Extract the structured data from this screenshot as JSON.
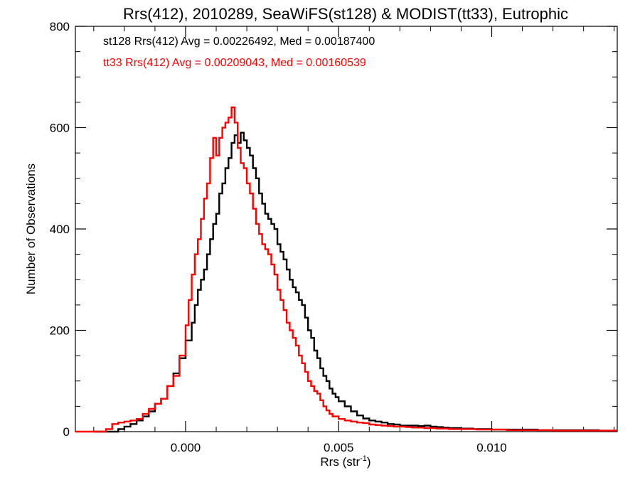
{
  "chart_data": {
    "type": "line",
    "title": "Rrs(412), 2010289, SeaWiFS(st128) & MODIST(tt33), Eutrophic",
    "xlabel": "Rrs (str",
    "xlabel_sup": "-1",
    "xlabel_end": ")",
    "ylabel": "Number of Observations",
    "xlim": [
      -0.0036,
      0.0141
    ],
    "ylim": [
      0,
      800
    ],
    "xticks": [
      0.0,
      0.005,
      0.01
    ],
    "xtick_labels": [
      "0.000",
      "0.005",
      "0.010"
    ],
    "yticks": [
      0,
      200,
      400,
      600,
      800
    ],
    "ytick_labels": [
      "0",
      "200",
      "400",
      "600",
      "800"
    ],
    "grid": false,
    "step": true,
    "annotations": [
      {
        "text": "st128 Rrs(412) Avg = 0.00226492, Med = 0.00187400",
        "color": "#000000"
      },
      {
        "text": "tt33 Rrs(412) Avg = 0.00209043, Med = 0.00160539",
        "color": "#ff0000"
      }
    ],
    "series": [
      {
        "color": "#000000",
        "points": [
          [
            -0.003,
            0
          ],
          [
            -0.0024,
            0
          ],
          [
            -0.0022,
            5
          ],
          [
            -0.002,
            10
          ],
          [
            -0.0018,
            15
          ],
          [
            -0.0016,
            22
          ],
          [
            -0.0014,
            30
          ],
          [
            -0.0012,
            40
          ],
          [
            -0.001,
            55
          ],
          [
            -0.0008,
            65
          ],
          [
            -0.0006,
            90
          ],
          [
            -0.0004,
            115
          ],
          [
            -0.0002,
            145
          ],
          [
            0.0,
            180
          ],
          [
            0.0002,
            215
          ],
          [
            0.0003,
            250
          ],
          [
            0.0004,
            280
          ],
          [
            0.0005,
            300
          ],
          [
            0.0006,
            320
          ],
          [
            0.0007,
            350
          ],
          [
            0.0008,
            380
          ],
          [
            0.0009,
            410
          ],
          [
            0.001,
            430
          ],
          [
            0.0011,
            470
          ],
          [
            0.0012,
            490
          ],
          [
            0.0013,
            520
          ],
          [
            0.0014,
            540
          ],
          [
            0.0015,
            570
          ],
          [
            0.0016,
            585
          ],
          [
            0.0017,
            570
          ],
          [
            0.0018,
            590
          ],
          [
            0.0019,
            575
          ],
          [
            0.002,
            560
          ],
          [
            0.0021,
            545
          ],
          [
            0.0022,
            520
          ],
          [
            0.0023,
            500
          ],
          [
            0.0024,
            470
          ],
          [
            0.0025,
            450
          ],
          [
            0.0026,
            430
          ],
          [
            0.0027,
            420
          ],
          [
            0.0028,
            410
          ],
          [
            0.0029,
            400
          ],
          [
            0.003,
            370
          ],
          [
            0.0031,
            355
          ],
          [
            0.0032,
            340
          ],
          [
            0.0033,
            320
          ],
          [
            0.0034,
            300
          ],
          [
            0.0035,
            285
          ],
          [
            0.0036,
            275
          ],
          [
            0.0037,
            260
          ],
          [
            0.0038,
            250
          ],
          [
            0.0039,
            225
          ],
          [
            0.004,
            200
          ],
          [
            0.0041,
            185
          ],
          [
            0.0042,
            160
          ],
          [
            0.0043,
            145
          ],
          [
            0.0044,
            125
          ],
          [
            0.0045,
            110
          ],
          [
            0.0046,
            100
          ],
          [
            0.0047,
            85
          ],
          [
            0.0048,
            75
          ],
          [
            0.0049,
            68
          ],
          [
            0.005,
            60
          ],
          [
            0.0052,
            50
          ],
          [
            0.0054,
            40
          ],
          [
            0.0056,
            32
          ],
          [
            0.0058,
            26
          ],
          [
            0.006,
            22
          ],
          [
            0.0062,
            20
          ],
          [
            0.0064,
            18
          ],
          [
            0.0066,
            15
          ],
          [
            0.0068,
            14
          ],
          [
            0.007,
            12
          ],
          [
            0.0072,
            12
          ],
          [
            0.0074,
            12
          ],
          [
            0.0076,
            11
          ],
          [
            0.0078,
            12
          ],
          [
            0.008,
            10
          ],
          [
            0.0082,
            9
          ],
          [
            0.0084,
            8
          ],
          [
            0.0086,
            7
          ],
          [
            0.0088,
            7
          ],
          [
            0.009,
            6
          ],
          [
            0.0092,
            6
          ],
          [
            0.0094,
            5
          ],
          [
            0.0096,
            5
          ],
          [
            0.0098,
            5
          ],
          [
            0.01,
            4
          ],
          [
            0.0105,
            4
          ],
          [
            0.011,
            4
          ],
          [
            0.0115,
            3
          ],
          [
            0.012,
            3
          ],
          [
            0.0125,
            3
          ],
          [
            0.013,
            3
          ],
          [
            0.0135,
            2
          ],
          [
            0.0141,
            2
          ]
        ]
      },
      {
        "color": "#ff0000",
        "points": [
          [
            -0.0036,
            0
          ],
          [
            -0.003,
            0
          ],
          [
            -0.0026,
            5
          ],
          [
            -0.0024,
            15
          ],
          [
            -0.0022,
            18
          ],
          [
            -0.002,
            20
          ],
          [
            -0.0018,
            22
          ],
          [
            -0.0016,
            25
          ],
          [
            -0.0014,
            35
          ],
          [
            -0.0012,
            45
          ],
          [
            -0.001,
            55
          ],
          [
            -0.0008,
            65
          ],
          [
            -0.0006,
            90
          ],
          [
            -0.0004,
            110
          ],
          [
            -0.0002,
            150
          ],
          [
            0.0,
            210
          ],
          [
            0.0001,
            260
          ],
          [
            0.0002,
            310
          ],
          [
            0.0003,
            350
          ],
          [
            0.0004,
            380
          ],
          [
            0.0005,
            420
          ],
          [
            0.0006,
            460
          ],
          [
            0.0007,
            490
          ],
          [
            0.0008,
            540
          ],
          [
            0.0009,
            580
          ],
          [
            0.001,
            545
          ],
          [
            0.0011,
            580
          ],
          [
            0.0012,
            600
          ],
          [
            0.0013,
            610
          ],
          [
            0.0014,
            620
          ],
          [
            0.0015,
            640
          ],
          [
            0.0016,
            610
          ],
          [
            0.0017,
            560
          ],
          [
            0.0018,
            530
          ],
          [
            0.0019,
            520
          ],
          [
            0.002,
            490
          ],
          [
            0.0021,
            470
          ],
          [
            0.0022,
            440
          ],
          [
            0.0023,
            410
          ],
          [
            0.0024,
            390
          ],
          [
            0.0025,
            370
          ],
          [
            0.0026,
            360
          ],
          [
            0.0027,
            350
          ],
          [
            0.0028,
            330
          ],
          [
            0.0029,
            310
          ],
          [
            0.003,
            280
          ],
          [
            0.0031,
            260
          ],
          [
            0.0032,
            240
          ],
          [
            0.0033,
            215
          ],
          [
            0.0034,
            200
          ],
          [
            0.0035,
            185
          ],
          [
            0.0036,
            170
          ],
          [
            0.0037,
            150
          ],
          [
            0.0038,
            135
          ],
          [
            0.0039,
            118
          ],
          [
            0.004,
            100
          ],
          [
            0.0041,
            90
          ],
          [
            0.0042,
            80
          ],
          [
            0.0043,
            75
          ],
          [
            0.0044,
            62
          ],
          [
            0.0045,
            50
          ],
          [
            0.0046,
            42
          ],
          [
            0.0047,
            35
          ],
          [
            0.0048,
            30
          ],
          [
            0.005,
            25
          ],
          [
            0.0052,
            22
          ],
          [
            0.0054,
            20
          ],
          [
            0.0056,
            18
          ],
          [
            0.0058,
            17
          ],
          [
            0.006,
            14
          ],
          [
            0.0062,
            13
          ],
          [
            0.0064,
            12
          ],
          [
            0.0066,
            11
          ],
          [
            0.0068,
            10
          ],
          [
            0.007,
            10
          ],
          [
            0.0072,
            9
          ],
          [
            0.0074,
            8
          ],
          [
            0.0076,
            8
          ],
          [
            0.0078,
            7
          ],
          [
            0.008,
            7
          ],
          [
            0.0082,
            6
          ],
          [
            0.0084,
            6
          ],
          [
            0.0086,
            5
          ],
          [
            0.0088,
            5
          ],
          [
            0.009,
            5
          ],
          [
            0.0095,
            4
          ],
          [
            0.01,
            4
          ],
          [
            0.0105,
            3
          ],
          [
            0.011,
            3
          ],
          [
            0.0115,
            3
          ],
          [
            0.012,
            2
          ],
          [
            0.0125,
            2
          ],
          [
            0.013,
            2
          ],
          [
            0.0135,
            2
          ],
          [
            0.0141,
            2
          ]
        ]
      }
    ]
  }
}
